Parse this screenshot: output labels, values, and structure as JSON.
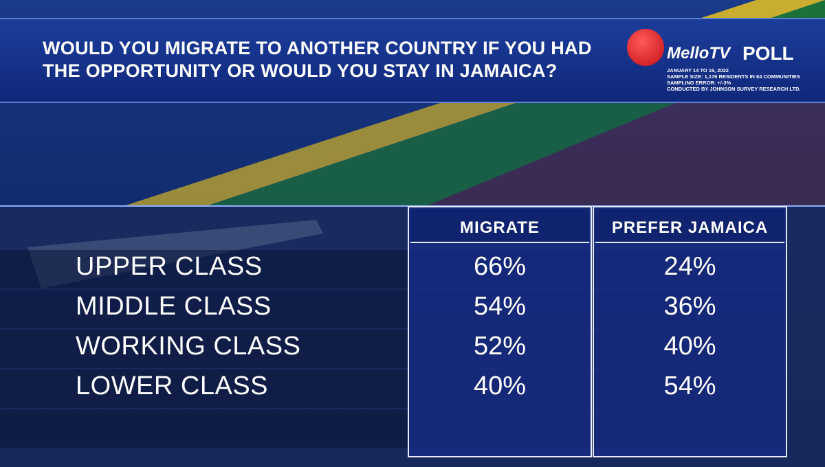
{
  "header": {
    "title": "WOULD YOU MIGRATE TO ANOTHER COUNTRY IF YOU HAD THE OPPORTUNITY OR WOULD YOU STAY IN JAMAICA?",
    "brand": "MelloTV",
    "label": "POLL",
    "notes": [
      "JANUARY 14 TO 16, 2022",
      "SAMPLE SIZE: 1,176  RESIDENTS IN 84 COMMUNITIES",
      "SAMPLING ERROR: +/-3%",
      "CONDUCTED BY JOHNSON SURVEY RESEARCH LTD."
    ]
  },
  "table": {
    "columns": [
      "MIGRATE",
      "PREFER JAMAICA"
    ],
    "rows": [
      [
        "UPPER CLASS",
        "66%",
        "24%"
      ],
      [
        "MIDDLE CLASS",
        "54%",
        "36%"
      ],
      [
        "WORKING CLASS",
        "52%",
        "40%"
      ],
      [
        "LOWER CLASS",
        "40%",
        "54%"
      ]
    ]
  }
}
